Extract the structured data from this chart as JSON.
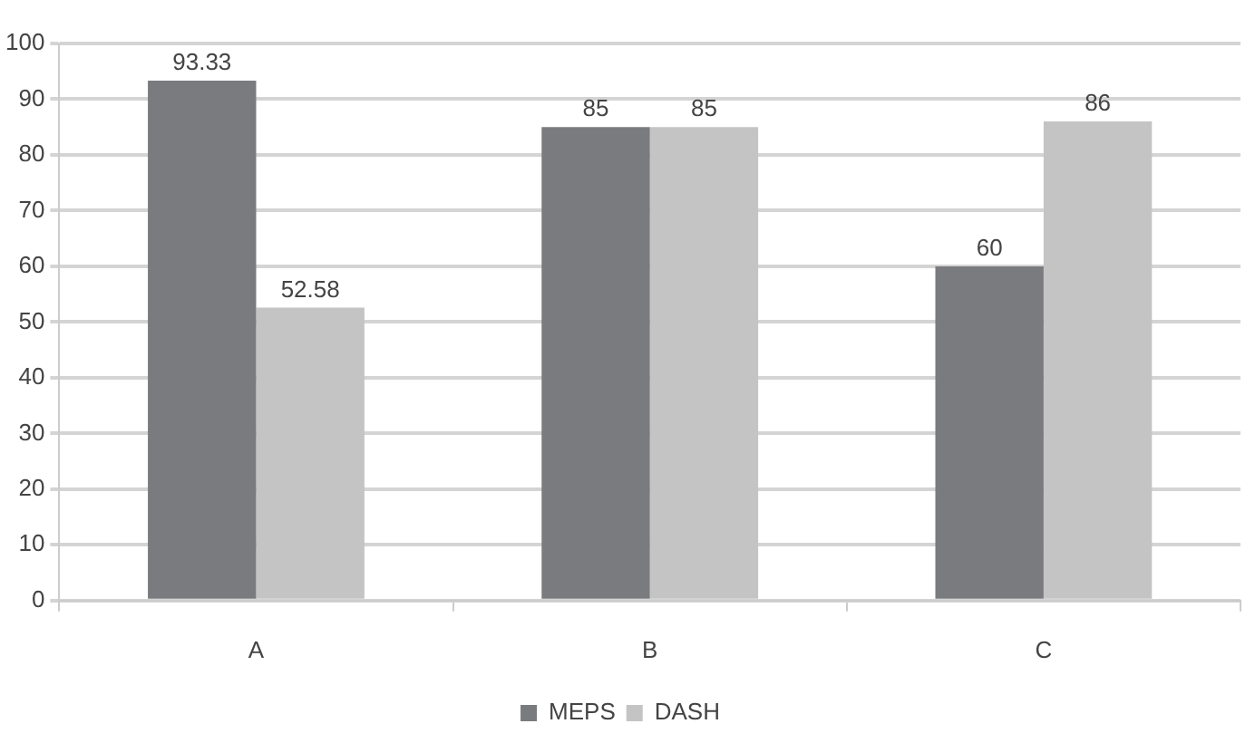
{
  "chart_data": {
    "type": "bar",
    "categories": [
      "A",
      "B",
      "C"
    ],
    "series": [
      {
        "name": "MEPS",
        "color": "#7a7b7e",
        "values": [
          93.33,
          85,
          60
        ]
      },
      {
        "name": "DASH",
        "color": "#c4c4c4",
        "values": [
          52.58,
          85,
          86
        ]
      }
    ],
    "ylim": [
      0,
      100
    ],
    "yticks": [
      0,
      10,
      20,
      30,
      40,
      50,
      60,
      70,
      80,
      90,
      100
    ],
    "grid": "y",
    "legend": "bottom",
    "data_labels": true
  }
}
